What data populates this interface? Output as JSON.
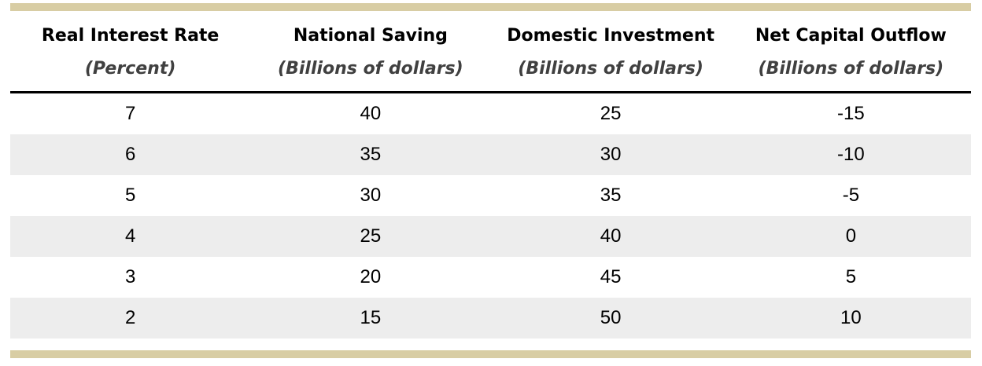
{
  "colors": {
    "accent_bar": "#d8cda4",
    "alt_row": "#ededed",
    "subtitle_text": "#404040",
    "header_rule": "#000000"
  },
  "chart_data": {
    "type": "table",
    "title": "",
    "columns": [
      {
        "title": "Real Interest Rate",
        "subtitle": "(Percent)"
      },
      {
        "title": "National Saving",
        "subtitle": "(Billions of dollars)"
      },
      {
        "title": "Domestic Investment",
        "subtitle": "(Billions of dollars)"
      },
      {
        "title": "Net Capital Outflow",
        "subtitle": "(Billions of dollars)"
      }
    ],
    "rows": [
      [
        "7",
        "40",
        "25",
        "-15"
      ],
      [
        "6",
        "35",
        "30",
        "-10"
      ],
      [
        "5",
        "30",
        "35",
        "-5"
      ],
      [
        "4",
        "25",
        "40",
        "0"
      ],
      [
        "3",
        "20",
        "45",
        "5"
      ],
      [
        "2",
        "15",
        "50",
        "10"
      ]
    ],
    "layout_hints": {
      "zebra_striping": true,
      "column_alignment": "center",
      "header_rule_thickness_px": 3,
      "accent_bars": "top and bottom"
    }
  }
}
